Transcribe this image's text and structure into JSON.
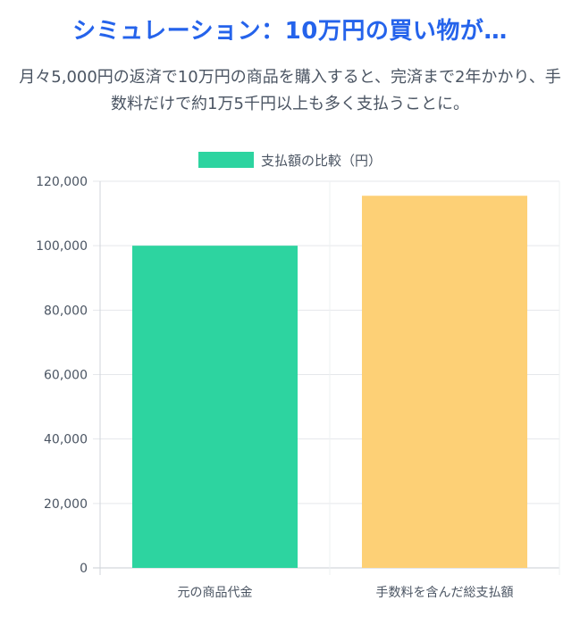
{
  "header": {
    "title": "シミュレーション：10万円の買い物が…",
    "subtitle": "月々5,000円の返済で10万円の商品を購入すると、完済まで2年かかり、手数料だけで約1万5千円以上も多く支払うことに。"
  },
  "chart_data": {
    "type": "bar",
    "categories": [
      "元の商品代金",
      "手数料を含んだ総支払額"
    ],
    "series": [
      {
        "name": "支払額の比較（円）",
        "values": [
          100000,
          115500
        ]
      }
    ],
    "bar_colors": [
      "#2dd4a0",
      "#fdd076"
    ],
    "y_ticks": [
      "0",
      "20,000",
      "40,000",
      "60,000",
      "80,000",
      "100,000",
      "120,000"
    ],
    "ylim": [
      0,
      120000
    ],
    "grid": true,
    "legend_position": "top"
  }
}
